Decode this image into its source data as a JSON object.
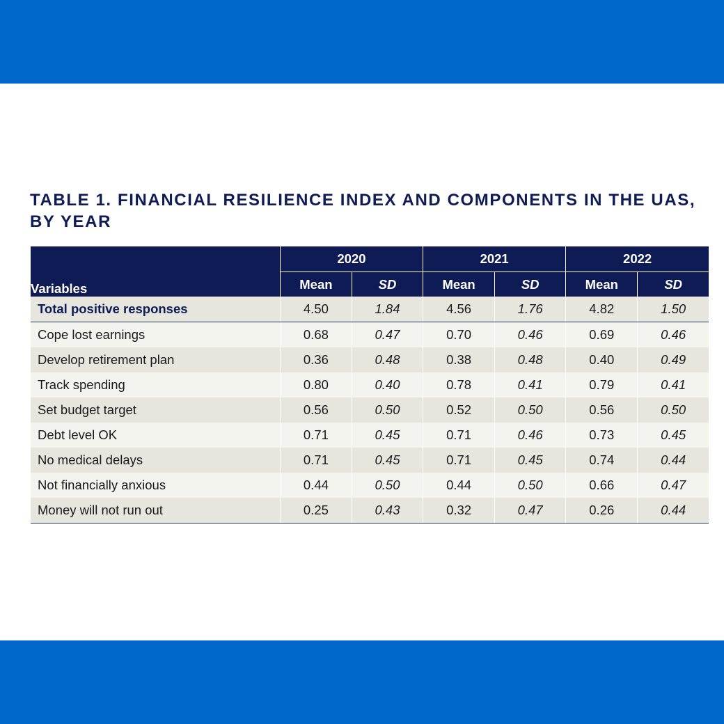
{
  "title": "TABLE 1. FINANCIAL RESILIENCE INDEX AND COMPONENTS IN THE UAS, BY YEAR",
  "colors": {
    "band": "#0068CC",
    "navy": "#0E1B55"
  },
  "header": {
    "variables": "Variables",
    "years": [
      "2020",
      "2021",
      "2022"
    ],
    "mean": "Mean",
    "sd": "SD"
  },
  "rows": [
    {
      "name": "Total positive responses",
      "values": [
        "4.50",
        "1.84",
        "4.56",
        "1.76",
        "4.82",
        "1.50"
      ]
    },
    {
      "name": "Cope lost earnings",
      "values": [
        "0.68",
        "0.47",
        "0.70",
        "0.46",
        "0.69",
        "0.46"
      ]
    },
    {
      "name": "Develop retirement plan",
      "values": [
        "0.36",
        "0.48",
        "0.38",
        "0.48",
        "0.40",
        "0.49"
      ]
    },
    {
      "name": "Track spending",
      "values": [
        "0.80",
        "0.40",
        "0.78",
        "0.41",
        "0.79",
        "0.41"
      ]
    },
    {
      "name": "Set budget target",
      "values": [
        "0.56",
        "0.50",
        "0.52",
        "0.50",
        "0.56",
        "0.50"
      ]
    },
    {
      "name": "Debt level OK",
      "values": [
        "0.71",
        "0.45",
        "0.71",
        "0.46",
        "0.73",
        "0.45"
      ]
    },
    {
      "name": "No medical delays",
      "values": [
        "0.71",
        "0.45",
        "0.71",
        "0.45",
        "0.74",
        "0.44"
      ]
    },
    {
      "name": "Not financially anxious",
      "values": [
        "0.44",
        "0.50",
        "0.44",
        "0.50",
        "0.66",
        "0.47"
      ]
    },
    {
      "name": "Money will not run out",
      "values": [
        "0.25",
        "0.43",
        "0.32",
        "0.47",
        "0.26",
        "0.44"
      ]
    }
  ]
}
